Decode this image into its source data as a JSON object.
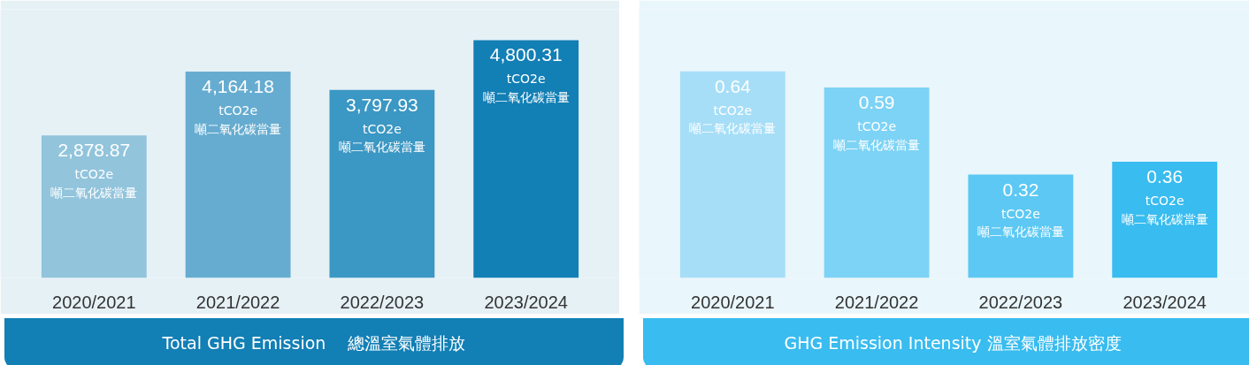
{
  "chart_data": [
    {
      "type": "bar",
      "title": "Total GHG Emission　 總溫室氣體排放",
      "categories": [
        "2020/2021",
        "2021/2022",
        "2022/2023",
        "2023/2024"
      ],
      "values": [
        2878.87,
        4164.18,
        3797.93,
        4800.31
      ],
      "colors": [
        "#92c4dc",
        "#66acd0",
        "#3b97c3",
        "#127fb5"
      ],
      "value_labels": [
        "2,878.87",
        "4,164.18",
        "3,797.93",
        "4,800.31"
      ],
      "annotations": [
        {
          "text": "tCO2e\n噸二氧化碳當量",
          "x": "2020/2021",
          "y": 2878.87
        },
        {
          "text": "tCO2e\n噸二氧化碳當量",
          "x": "2021/2022",
          "y": 4164.18
        },
        {
          "text": "tCO2e\n噸二氧化碳當量",
          "x": "2022/2023",
          "y": 3797.93
        },
        {
          "text": "tCO2e\n噸二氧化碳當量",
          "x": "2023/2024",
          "y": 4800.31
        }
      ],
      "grid": false
    },
    {
      "type": "bar",
      "title": "GHG Emission Intensity 溫室氣體排放密度",
      "categories": [
        "2020/2021",
        "2021/2022",
        "2022/2023",
        "2023/2024"
      ],
      "values": [
        0.64,
        0.59,
        0.32,
        0.36
      ],
      "colors": [
        "#a6def7",
        "#7dd3f5",
        "#5cc8f3",
        "#39bcef"
      ],
      "data_labels": true,
      "annotations": [
        {
          "text": "tCO2e\n噸二氧化碳當量",
          "x": "2020/2021",
          "y": 0.64
        },
        {
          "text": "tCO2e\n噸二氧化碳當量",
          "x": "2021/2022",
          "y": 0.59
        },
        {
          "text": "tCO2e\n噸二氧化碳當量",
          "x": "2022/2023",
          "y": 0.32
        },
        {
          "text": "tCO2e\n噸二氧化碳當量",
          "x": "2023/2024",
          "y": 0.36
        }
      ],
      "grid": false
    }
  ]
}
